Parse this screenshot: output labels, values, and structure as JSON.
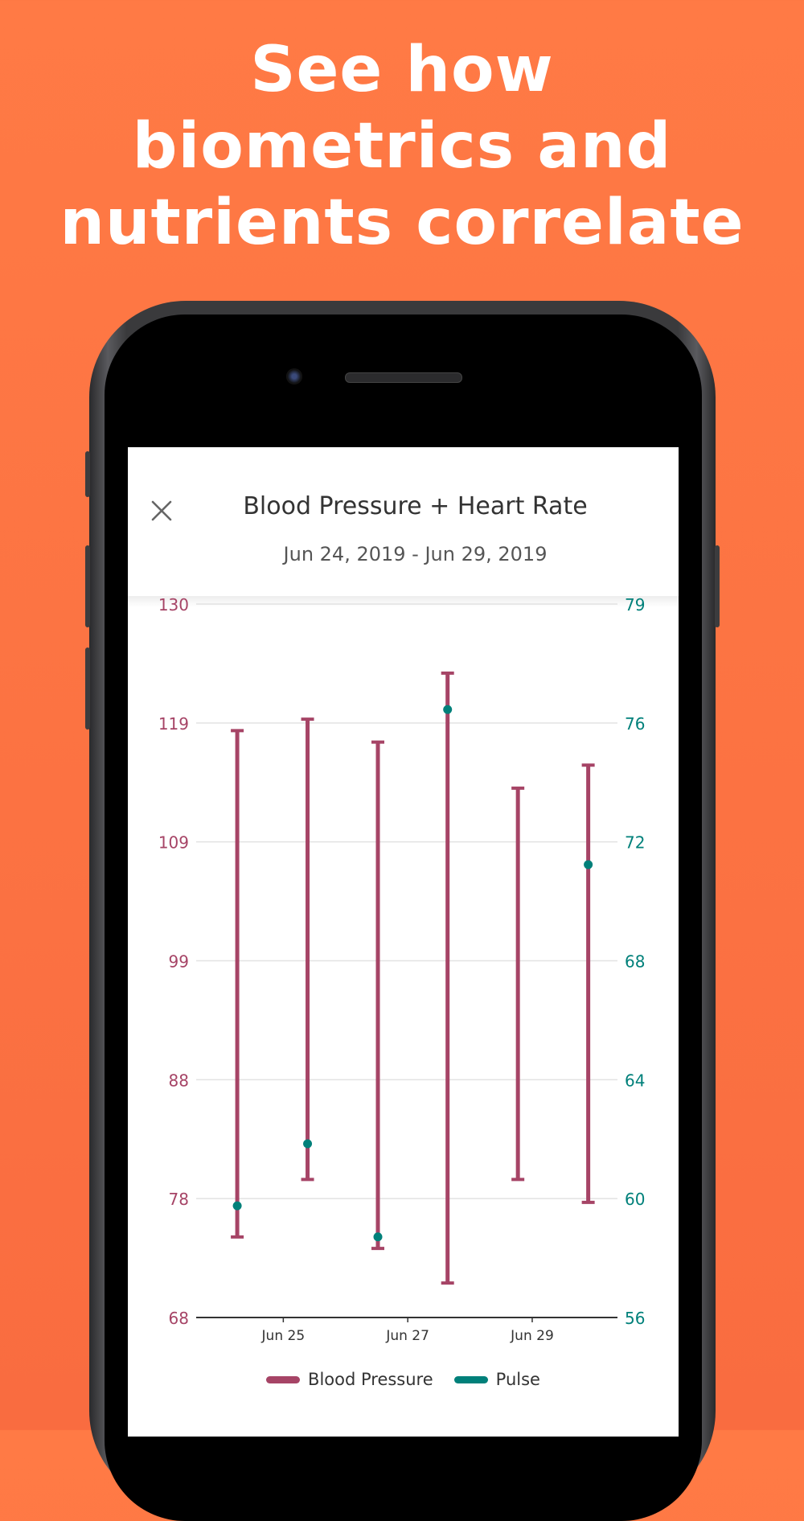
{
  "headline": [
    "See how",
    "biometrics and",
    "nutrients correlate"
  ],
  "header": {
    "title": "Blood Pressure + Heart Rate",
    "date_range": "Jun 24, 2019 - Jun 29, 2019",
    "close_icon": "close-icon"
  },
  "colors": {
    "background": "#FF7A45",
    "blood_pressure": "#A64466",
    "pulse": "#00807A"
  },
  "chart_data": {
    "type": "range-bar+scatter",
    "title": "Blood Pressure + Heart Rate",
    "left_axis": {
      "label": "Blood Pressure",
      "ylim": [
        68,
        130
      ],
      "ticks": [
        "130",
        "119",
        "109",
        "99",
        "88",
        "78",
        "68"
      ]
    },
    "right_axis": {
      "label": "Pulse",
      "ylim": [
        56,
        79
      ],
      "ticks": [
        "79",
        "76",
        "72",
        "68",
        "64",
        "60",
        "56"
      ]
    },
    "x_axis": {
      "xlim": [
        23.6,
        30.37
      ],
      "ticks": [
        {
          "value": 25,
          "label": "Jun 25"
        },
        {
          "value": 27,
          "label": "Jun 27"
        },
        {
          "value": 29,
          "label": "Jun 29"
        }
      ]
    },
    "grid": true,
    "legend": {
      "placement": "bottom",
      "entries": [
        "Blood Pressure",
        "Pulse"
      ]
    },
    "series": [
      {
        "name": "Blood Pressure",
        "type": "range",
        "points": [
          {
            "x": 24.26,
            "high": 119,
            "low": 75
          },
          {
            "x": 25.39,
            "high": 120,
            "low": 80
          },
          {
            "x": 26.52,
            "high": 118,
            "low": 74
          },
          {
            "x": 27.64,
            "high": 124,
            "low": 71
          },
          {
            "x": 28.77,
            "high": 114,
            "low": 80
          },
          {
            "x": 29.9,
            "high": 116,
            "low": 78
          }
        ]
      },
      {
        "name": "Pulse",
        "type": "scatter",
        "points": [
          {
            "x": 24.26,
            "y": 59.6
          },
          {
            "x": 25.39,
            "y": 61.6
          },
          {
            "x": 26.52,
            "y": 58.6
          },
          {
            "x": 27.64,
            "y": 75.6
          },
          {
            "x": 29.9,
            "y": 70.6
          }
        ]
      }
    ]
  }
}
